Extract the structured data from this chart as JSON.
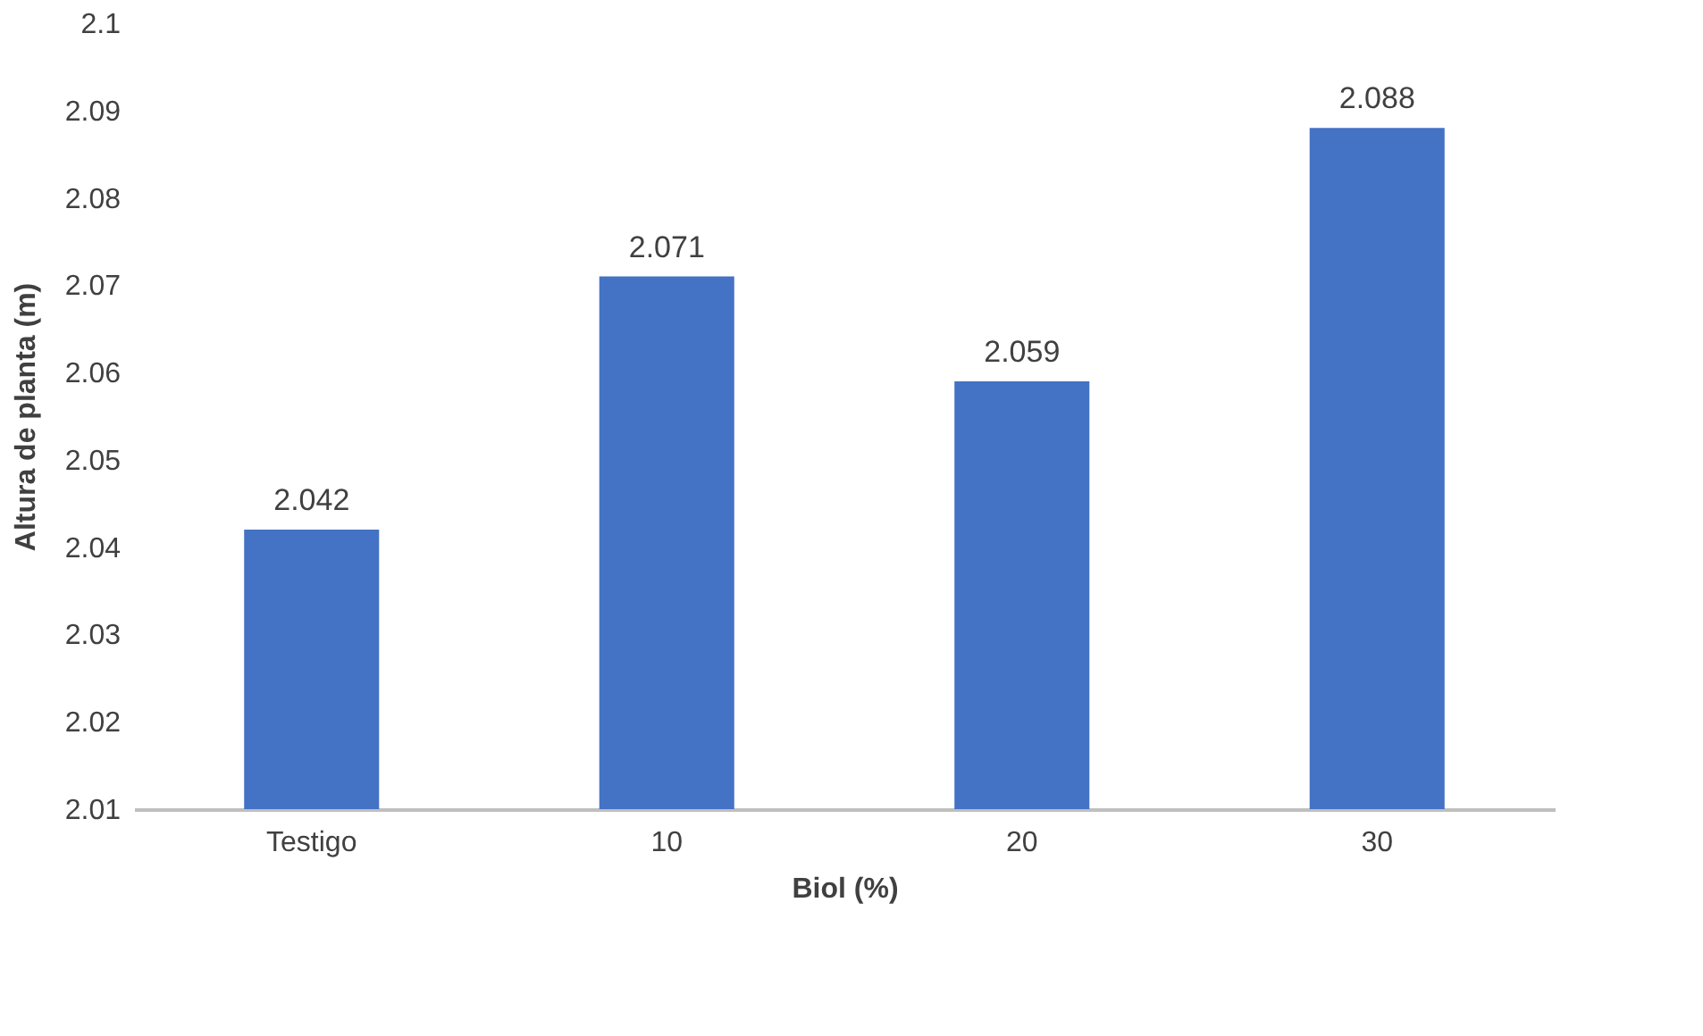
{
  "chart_data": {
    "type": "bar",
    "xlabel": "Biol (%)",
    "ylabel": "Altura de planta (m)",
    "categories": [
      "Testigo",
      "10",
      "20",
      "30"
    ],
    "values": [
      2.042,
      2.071,
      2.059,
      2.088
    ],
    "color": "#4472c4",
    "ylim": [
      2.01,
      2.1
    ],
    "yticks": [
      2.01,
      2.02,
      2.03,
      2.04,
      2.05,
      2.06,
      2.07,
      2.08,
      2.09,
      2.1
    ],
    "grid": false,
    "data_labels": true
  }
}
